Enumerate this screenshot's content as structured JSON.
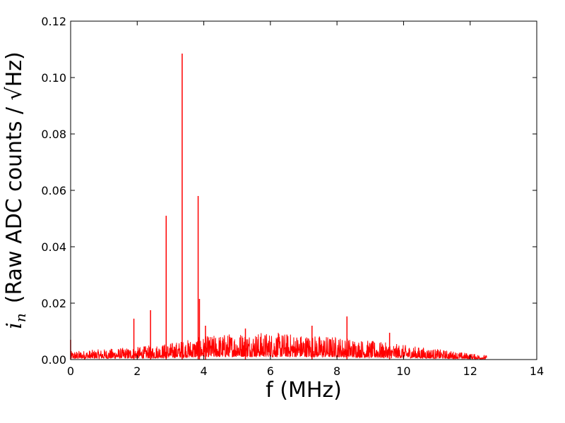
{
  "chart_data": {
    "type": "line",
    "title": "",
    "xlabel": "f (MHz)",
    "ylabel": "(Raw ADC counts / √Hz)",
    "ylabel_symbol_base": "i",
    "ylabel_symbol_sub": "n",
    "xlim": [
      0,
      14
    ],
    "ylim": [
      0,
      0.12
    ],
    "xticks": [
      0,
      2,
      4,
      6,
      8,
      10,
      12,
      14
    ],
    "xtick_labels": [
      "0",
      "2",
      "4",
      "6",
      "8",
      "10",
      "12",
      "14"
    ],
    "yticks": [
      0,
      0.02,
      0.04,
      0.06,
      0.08,
      0.1,
      0.12
    ],
    "ytick_labels": [
      "0.00",
      "0.02",
      "0.04",
      "0.06",
      "0.08",
      "0.10",
      "0.12"
    ],
    "grid": false,
    "line_color": "#ff0000",
    "noise_floor": {
      "x_range": [
        0,
        12.5
      ],
      "envelope": [
        {
          "x": 0.0,
          "y": 0.002
        },
        {
          "x": 1.0,
          "y": 0.0025
        },
        {
          "x": 2.0,
          "y": 0.003
        },
        {
          "x": 3.0,
          "y": 0.004
        },
        {
          "x": 4.0,
          "y": 0.0055
        },
        {
          "x": 5.0,
          "y": 0.0065
        },
        {
          "x": 6.0,
          "y": 0.0065
        },
        {
          "x": 7.0,
          "y": 0.006
        },
        {
          "x": 8.0,
          "y": 0.0055
        },
        {
          "x": 9.0,
          "y": 0.0045
        },
        {
          "x": 10.0,
          "y": 0.0035
        },
        {
          "x": 11.0,
          "y": 0.0025
        },
        {
          "x": 12.0,
          "y": 0.0015
        },
        {
          "x": 12.5,
          "y": 0.001
        }
      ]
    },
    "peaks": [
      {
        "x": 0.0,
        "y": 0.007
      },
      {
        "x": 1.9,
        "y": 0.0145
      },
      {
        "x": 2.4,
        "y": 0.0175
      },
      {
        "x": 2.87,
        "y": 0.051
      },
      {
        "x": 3.35,
        "y": 0.1085
      },
      {
        "x": 3.83,
        "y": 0.058
      },
      {
        "x": 3.87,
        "y": 0.0215
      },
      {
        "x": 4.05,
        "y": 0.012
      },
      {
        "x": 5.25,
        "y": 0.011
      },
      {
        "x": 7.25,
        "y": 0.012
      },
      {
        "x": 8.3,
        "y": 0.0153
      },
      {
        "x": 9.58,
        "y": 0.0095
      }
    ]
  }
}
